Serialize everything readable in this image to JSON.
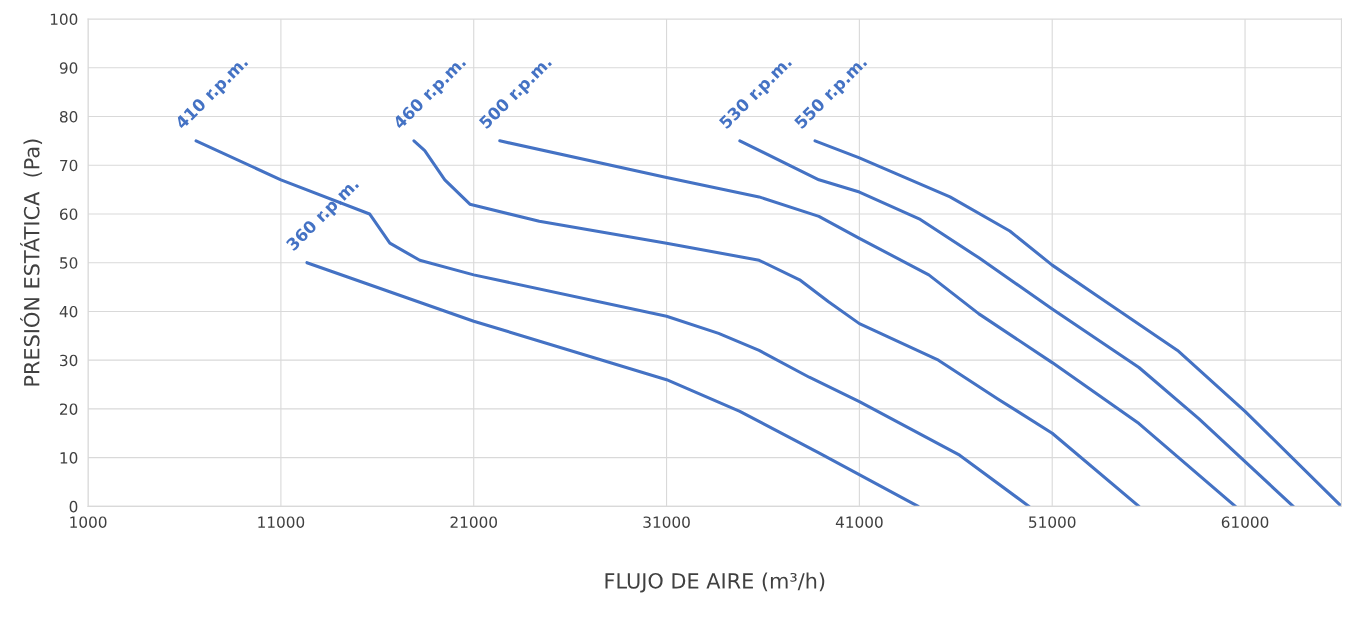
{
  "chart_data": {
    "type": "line",
    "xlabel": "FLUJO DE AIRE (m³/h)",
    "ylabel": "PRESIÓN ESTÁTICA  (Pa)",
    "xlim": [
      1000,
      66000
    ],
    "ylim": [
      0,
      100
    ],
    "xticks": [
      1000,
      11000,
      21000,
      31000,
      41000,
      51000,
      61000
    ],
    "yticks": [
      0,
      10,
      20,
      30,
      40,
      50,
      60,
      70,
      80,
      90,
      100
    ],
    "grid": true,
    "legend": false,
    "marker": "none",
    "line_style": "solid",
    "series": [
      {
        "name": "360 r.p.m.",
        "color": "#4472c4",
        "x": [
          12350,
          21000,
          31000,
          34800,
          38900,
          44050
        ],
        "values": [
          50,
          38,
          26,
          19.5,
          11,
          0
        ]
      },
      {
        "name": "410 r.p.m.",
        "color": "#4472c4",
        "x": [
          6600,
          11000,
          15600,
          16650,
          18200,
          21000,
          31000,
          33700,
          35800,
          38400,
          41000,
          46200,
          49800
        ],
        "values": [
          75,
          67,
          60,
          54,
          50.5,
          47.5,
          39,
          35.5,
          32,
          26.5,
          21.5,
          10.5,
          0
        ]
      },
      {
        "name": "460 r.p.m.",
        "color": "#4472c4",
        "x": [
          17900,
          18460,
          19500,
          20800,
          24400,
          31000,
          35800,
          37900,
          39400,
          41000,
          45100,
          48200,
          51000,
          55500
        ],
        "values": [
          75,
          73,
          67,
          62,
          58.5,
          54,
          50.5,
          46.5,
          42,
          37.5,
          30,
          22,
          15,
          0
        ]
      },
      {
        "name": "500 r.p.m.",
        "color": "#4472c4",
        "x": [
          22350,
          31000,
          35800,
          38900,
          41000,
          44600,
          47200,
          51000,
          55500,
          60500
        ],
        "values": [
          75,
          67.5,
          63.5,
          59.5,
          55,
          47.5,
          39.5,
          29.5,
          17,
          0
        ]
      },
      {
        "name": "530 r.p.m.",
        "color": "#4472c4",
        "x": [
          34800,
          38900,
          41000,
          44100,
          47200,
          51000,
          55500,
          58600,
          63500
        ],
        "values": [
          75,
          67,
          64.5,
          59,
          51,
          40.5,
          28.5,
          18,
          0
        ]
      },
      {
        "name": "550 r.p.m.",
        "color": "#4472c4",
        "x": [
          38700,
          41000,
          45700,
          48800,
          51000,
          53400,
          57500,
          61000,
          66000
        ],
        "values": [
          75,
          71.5,
          63.5,
          56.5,
          49.5,
          43,
          32,
          19.5,
          0
        ]
      }
    ]
  }
}
